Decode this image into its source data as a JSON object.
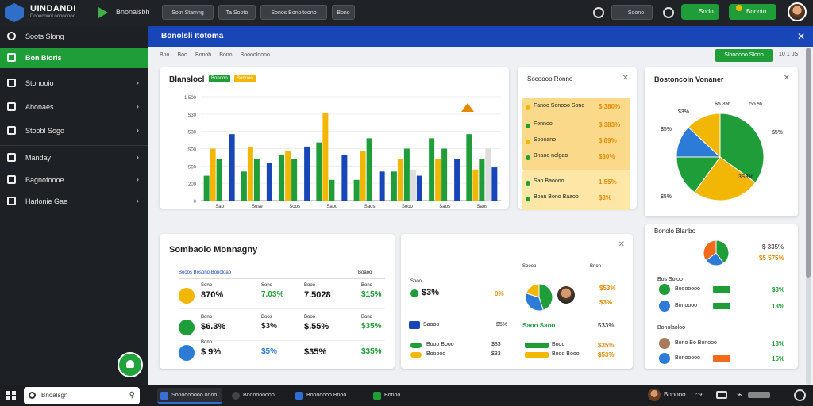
{
  "app": {
    "brand": "UINDANDI",
    "brand_sub": "Dooocoool oooooooo",
    "title": "Bnonalsbh",
    "tabs": [
      "Sotn Stamng",
      "Ta Sooto",
      "Sonos Bonoltoono",
      "Bono"
    ],
    "right": {
      "search_label": "Soono",
      "pill1": "Sodo",
      "pill2": "Bonoto"
    }
  },
  "sidebar": {
    "items": [
      {
        "label": "Soots Slong",
        "active": false,
        "chevron": false
      },
      {
        "label": "Bon Bloris",
        "active": true,
        "chevron": false
      },
      {
        "label": "Stonooio",
        "active": false,
        "chevron": true
      },
      {
        "label": "Abonaes",
        "active": false,
        "chevron": true
      },
      {
        "label": "Stoobl Sogo",
        "active": false,
        "chevron": true
      },
      {
        "label": "Manday",
        "active": false,
        "chevron": true
      },
      {
        "label": "Bagnofoooe",
        "active": false,
        "chevron": true
      },
      {
        "label": "Harlonie Gae",
        "active": false,
        "chevron": true
      }
    ]
  },
  "main": {
    "header": "Bonolsli Itotoma",
    "crumbs": [
      "Bno",
      "Boo",
      "Bonob",
      "Bono",
      "Booooloono"
    ],
    "action_button": "Slonoooo Slono",
    "page_ctl": "10  1 0S"
  },
  "bar_card": {
    "title": "Blanslocl",
    "chip1": "Bonooo",
    "chip2": "Bonooo"
  },
  "chart_data": {
    "type": "bar",
    "categories": [
      "Sao",
      "Sose",
      "Soos",
      "Saoo",
      "Saos",
      "Sooo",
      "Saos",
      "Saos"
    ],
    "series": [
      {
        "color": "#1f9d38",
        "values": [
          12,
          14,
          22,
          28,
          10,
          14,
          30,
          32
        ]
      },
      {
        "color": "#f2b705",
        "values": [
          25,
          26,
          24,
          42,
          24,
          20,
          20,
          15
        ]
      },
      {
        "color": "#1f9d38",
        "values": [
          20,
          20,
          20,
          10,
          30,
          25,
          25,
          20
        ]
      },
      {
        "color": "#dddddd",
        "values": [
          0,
          0,
          0,
          0,
          0,
          15,
          0,
          25
        ]
      },
      {
        "color": "#1846b8",
        "values": [
          32,
          18,
          26,
          22,
          14,
          12,
          20,
          16
        ]
      }
    ],
    "yticks": [
      "1 500",
      "S30",
      "S30",
      "S00",
      "S00",
      "200",
      "0"
    ],
    "ylim": [
      0,
      50
    ]
  },
  "stat_card": {
    "title": "Socoooo Ronno",
    "rows": [
      {
        "label": "Fanoo Sonooo Sono",
        "value": "$ 380%",
        "color": "#f2b705"
      },
      {
        "label": "Fonnoo",
        "value": "$ 383%",
        "color": "#1f9d38"
      },
      {
        "label": "Soooano",
        "value": "$ 89%",
        "color": "#f2b705"
      },
      {
        "label": "Bnaoo nolgao",
        "value": "$30%",
        "color": "#1f9d38"
      },
      {
        "label": "Sao Baoooo",
        "value": "1.55%",
        "color": "#1f9d38"
      },
      {
        "label": "Boan Bono Baaoo",
        "value": "$3%",
        "color": "#1f9d38"
      }
    ]
  },
  "pie_card": {
    "title": "Bostoncoin Vonaner",
    "labels": [
      "$3%",
      "$5.3%",
      "55 %",
      "$5%",
      "$5%",
      "$5%",
      "3S3%"
    ],
    "pie": [
      {
        "value": 35,
        "color": "#1f9d38"
      },
      {
        "value": 25,
        "color": "#f2b705"
      },
      {
        "value": 15,
        "color": "#1f9d38"
      },
      {
        "value": 12,
        "color": "#2c7bd6"
      },
      {
        "value": 13,
        "color": "#f2b705"
      }
    ]
  },
  "sum_card": {
    "title": "Sombaolo Monnagny",
    "header_left": "Booos Bosono Bonoloao",
    "header_right": "Boaoo",
    "rows": [
      {
        "c1_label": "Sono",
        "c1": "870%",
        "c2_label": "Sono",
        "c2": "7.03%",
        "c3_label": "Booo",
        "c3": "7.5028",
        "c4_label": "Bono",
        "c4": "$15%"
      },
      {
        "c1_label": "Bono",
        "c1": "$6.3%",
        "c2_label": "Boos",
        "c2": "$3%",
        "c3_label": "Booo",
        "c3": "$.55%",
        "c4_label": "Bono",
        "c4": "$35%"
      },
      {
        "c1_label": "Bono",
        "c1": "$ 9%",
        "c2_label": "",
        "c2": "$5%",
        "c3_label": "",
        "c3": "$35%",
        "c4_label": "",
        "c4": "$35%"
      }
    ]
  },
  "mid_card": {
    "left_label": "Sooo",
    "left_value": "$3%",
    "left_tail": "0%",
    "pie_label_l": "Soooo",
    "pie_label_r": "Bnon",
    "val1": "$53%",
    "val2": "$3%",
    "list_title": "Saooo",
    "list_title2": "Saoo Saoo",
    "list_pct": "$5%",
    "list_pct2": "533%",
    "rows": [
      {
        "label": "Booo Booo",
        "v1": "$33",
        "v2": "Booo",
        "v3": "$35%"
      },
      {
        "label": "Booooo",
        "v1": "$33",
        "v2": "Booo Booo",
        "v3": "$53%"
      }
    ]
  },
  "right_card": {
    "title": "Bonolo Blanbo",
    "val1": "$ 335%",
    "val2": "$5 575%",
    "rows": [
      {
        "label": "Bos Soloo",
        "value": ""
      },
      {
        "label": "Booooooo",
        "value": "$3%"
      },
      {
        "label": "Bonoooo",
        "value": "13%"
      },
      {
        "label": "Bonolaoloo",
        "value": ""
      },
      {
        "label": "Bono Bo Bonooo",
        "value": "13%"
      },
      {
        "label": "Bonooooo",
        "value": "15%"
      }
    ]
  },
  "taskbar": {
    "search": "Bnoalsgn",
    "apps": [
      "Sooooooooo oooo",
      "Booooooooo",
      "Booooooo Bnoo",
      "Bonoo"
    ],
    "user": "Booooo"
  }
}
